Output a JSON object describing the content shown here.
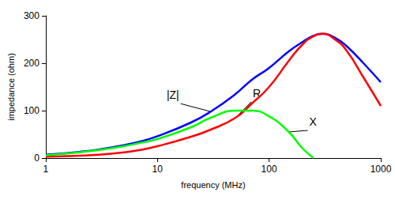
{
  "chart_data": {
    "type": "line",
    "x_label": "frequency (MHz)",
    "y_label": "impedance (ohm)",
    "log": "x",
    "grid": false,
    "xlim": [
      1,
      1000
    ],
    "xticks": [
      1,
      10,
      100,
      1000
    ],
    "ylim": [
      0,
      300
    ],
    "yticks": [
      0,
      100,
      200,
      300
    ],
    "x": [
      1,
      2,
      3,
      5,
      7,
      10,
      20,
      30,
      50,
      70,
      100,
      150,
      200,
      250,
      300,
      400,
      500,
      700,
      1000
    ],
    "series": [
      {
        "name": "|Z|",
        "color": "#0000ff",
        "values": [
          7,
          13,
          18,
          27,
          35,
          46,
          75,
          98,
          135,
          165,
          190,
          225,
          245,
          258,
          262,
          252,
          235,
          200,
          160
        ]
      },
      {
        "name": "R",
        "color": "#ff0000",
        "values": [
          3,
          5,
          7,
          12,
          17,
          25,
          45,
          60,
          85,
          115,
          150,
          205,
          240,
          257,
          262,
          248,
          225,
          170,
          110
        ]
      },
      {
        "name": "X",
        "color": "#00ff00",
        "values": [
          6,
          12,
          17,
          25,
          32,
          40,
          65,
          85,
          100,
          100,
          88,
          55,
          20,
          0,
          null,
          null,
          null,
          null,
          null
        ]
      }
    ]
  }
}
